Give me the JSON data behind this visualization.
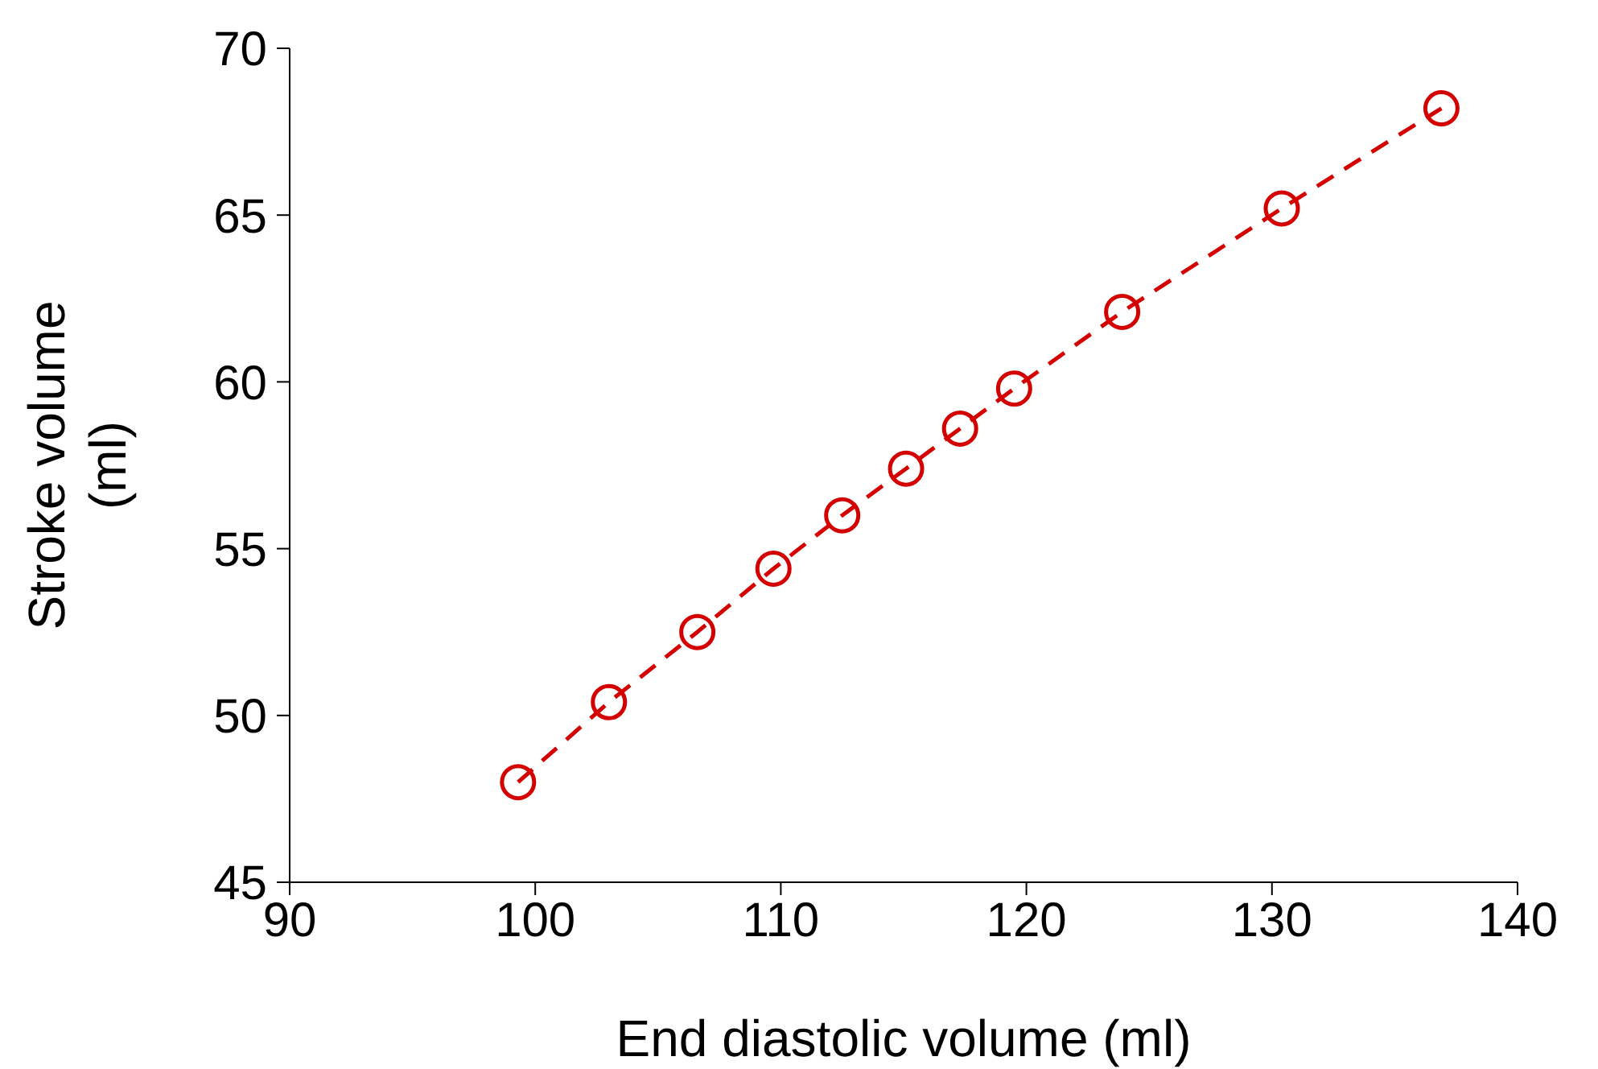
{
  "chart_data": {
    "type": "line",
    "xlabel": "End diastolic volume (ml)",
    "ylabel": "Stroke volume (ml)",
    "x": [
      99.3,
      103.0,
      106.6,
      109.7,
      112.5,
      115.1,
      117.3,
      119.5,
      123.9,
      130.4,
      136.9
    ],
    "series": [
      {
        "color": "#d40000",
        "values": [
          48.0,
          50.4,
          52.5,
          54.4,
          56.0,
          57.4,
          58.6,
          59.8,
          62.1,
          65.2,
          68.2
        ]
      }
    ],
    "xlim": [
      90,
      140
    ],
    "xticks": [
      90,
      100,
      110,
      120,
      130,
      140
    ],
    "ylim": [
      45,
      70
    ],
    "yticks": [
      45,
      50,
      55,
      60,
      65,
      70
    ],
    "marker": "circle",
    "line_style": "dashed",
    "grid": false,
    "legend": false
  }
}
